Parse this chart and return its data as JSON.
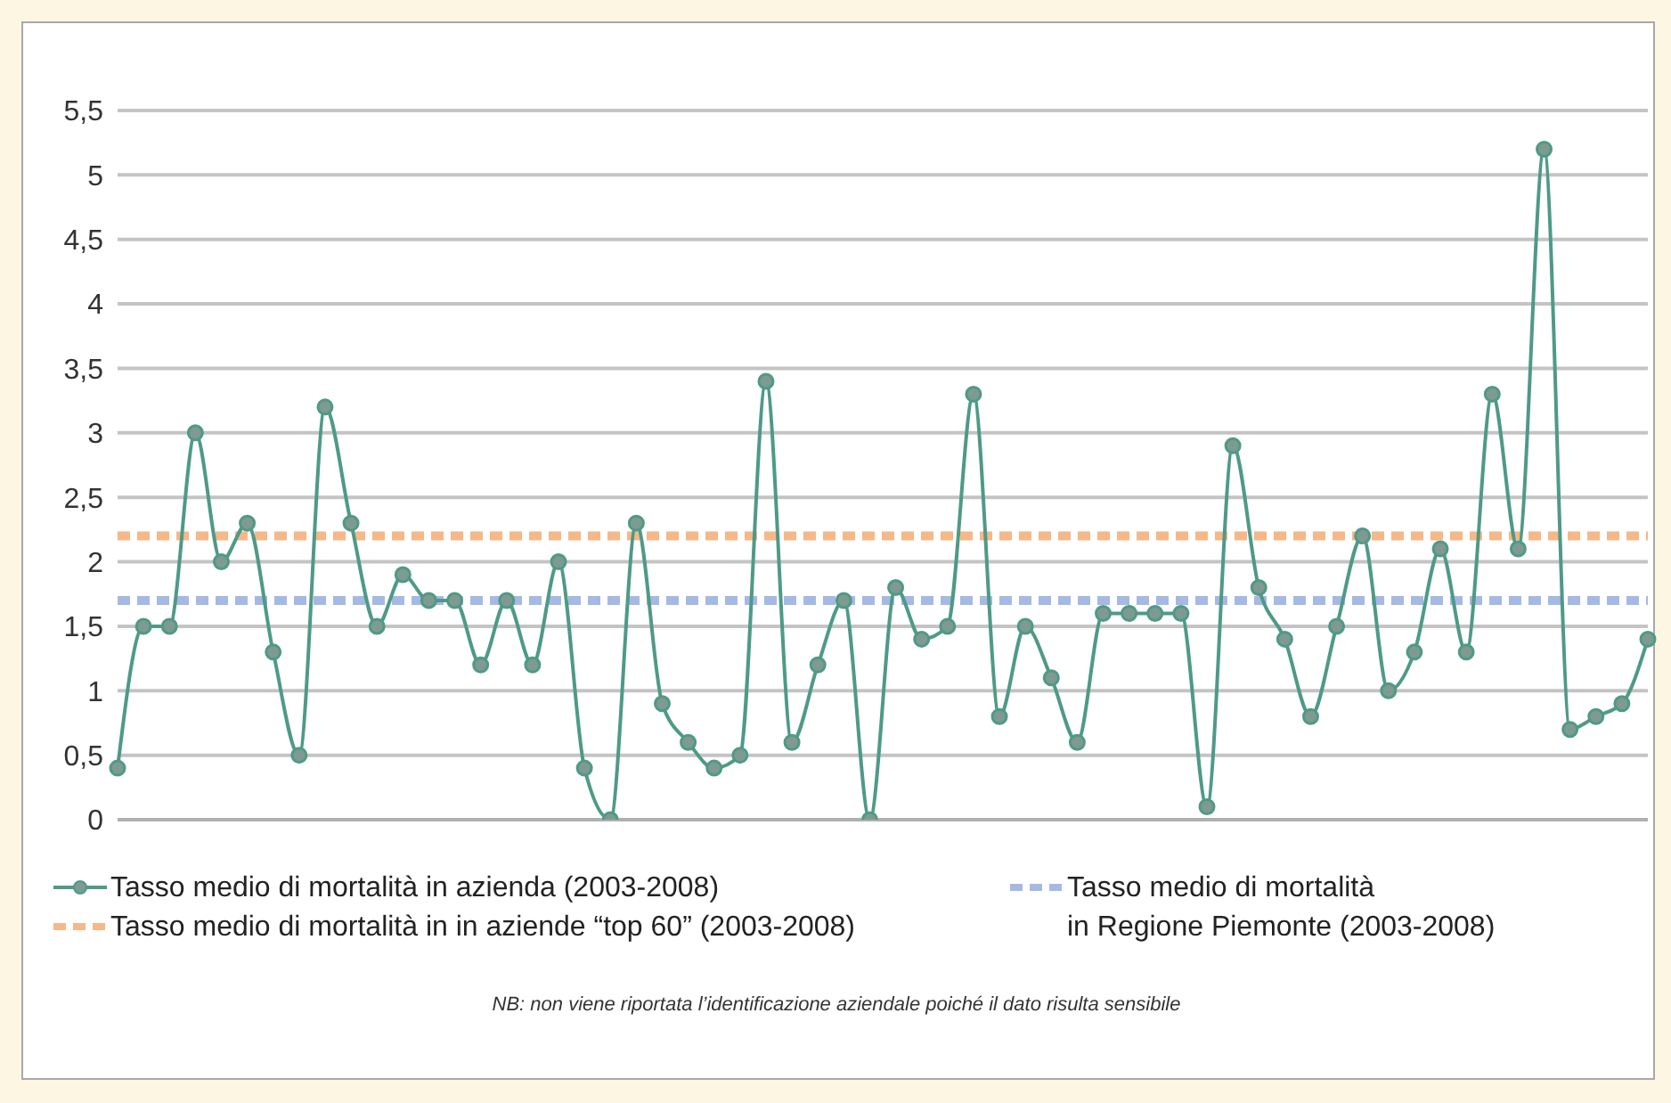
{
  "chart_data": {
    "type": "line",
    "categories": [
      null,
      null,
      null,
      null,
      null,
      null,
      null,
      null,
      null,
      null,
      null,
      null,
      null,
      null,
      null,
      null,
      null,
      null,
      null,
      null,
      null,
      null,
      null,
      null,
      null,
      null,
      null,
      null,
      null,
      null,
      null,
      null,
      null,
      null,
      null,
      null,
      null,
      null,
      null,
      null,
      null,
      null,
      null,
      null,
      null,
      null,
      null,
      null,
      null,
      null,
      null,
      null,
      null,
      null,
      null,
      null,
      null,
      null,
      null,
      null
    ],
    "series": [
      {
        "name": "Tasso medio di mortalità in azienda (2003-2008)",
        "color": "#4e9a87",
        "values": [
          0.4,
          1.5,
          1.5,
          3.0,
          2.0,
          2.3,
          1.3,
          0.5,
          3.2,
          2.3,
          1.5,
          1.9,
          1.7,
          1.7,
          1.2,
          1.7,
          1.2,
          2.0,
          0.4,
          0.0,
          2.3,
          0.9,
          0.6,
          0.4,
          0.5,
          3.4,
          0.6,
          1.2,
          1.7,
          0.0,
          1.8,
          1.4,
          1.5,
          3.3,
          0.8,
          1.5,
          1.1,
          0.6,
          1.6,
          1.6,
          1.6,
          1.6,
          0.1,
          2.9,
          1.8,
          1.4,
          0.8,
          1.5,
          2.2,
          1.0,
          1.3,
          2.1,
          1.3,
          3.3,
          2.1,
          5.2,
          0.7,
          0.8,
          0.9,
          1.4
        ]
      }
    ],
    "ylim": [
      0,
      5.5
    ],
    "yticks": [
      0,
      {
        "value": 0.5,
        "label": "0,5"
      },
      1,
      {
        "value": 1.5,
        "label": "1,5"
      },
      2,
      {
        "value": 2.5,
        "label": "2,5"
      },
      3,
      {
        "value": 3.5,
        "label": "3,5"
      },
      4,
      {
        "value": 4.5,
        "label": "4,5"
      },
      5,
      {
        "value": 5.5,
        "label": "5,5"
      }
    ],
    "grid": "y",
    "marker": "circle",
    "legend": "bottom",
    "tick_labels": "y",
    "ref_lines": [
      {
        "axis": "y",
        "value": 2.2,
        "label": "Tasso medio di mortalità in in aziende “top 60” (2003-2008)",
        "color": "#f3a66a",
        "line_style": "dashed"
      },
      {
        "axis": "y",
        "value": 1.7,
        "label": "Tasso medio di mortalità\nin Regione Piemonte (2003-2008)",
        "color": "#8ea7dc",
        "line_style": "dashed"
      }
    ],
    "annotations": [
      "NB: non viene riportata l’identificazione aziendale poiché il dato risulta sensibile"
    ]
  }
}
